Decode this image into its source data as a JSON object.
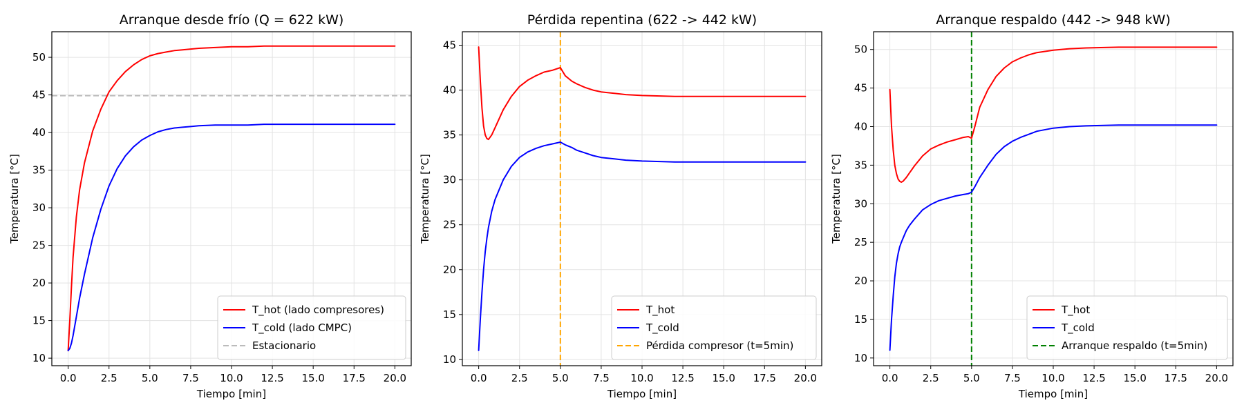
{
  "chart_data": [
    {
      "type": "line",
      "title": "Arranque desde frío (Q = 622 kW)",
      "xlabel": "Tiempo [min]",
      "ylabel": "Temperatura [°C]",
      "xlim": [
        -1,
        21
      ],
      "ylim": [
        9,
        53.4
      ],
      "xticks": [
        "0.0",
        "2.5",
        "5.0",
        "7.5",
        "10.0",
        "12.5",
        "15.0",
        "17.5",
        "20.0"
      ],
      "yticks": [
        "10",
        "15",
        "20",
        "25",
        "30",
        "35",
        "40",
        "45",
        "50"
      ],
      "grid": true,
      "legend_position": "lower-right",
      "x": [
        0,
        0.1,
        0.2,
        0.3,
        0.5,
        0.7,
        1.0,
        1.5,
        2.0,
        2.5,
        3.0,
        3.5,
        4.0,
        4.5,
        5.0,
        5.5,
        6.0,
        6.5,
        7.0,
        7.5,
        8.0,
        9.0,
        10.0,
        11.0,
        12.0,
        13.0,
        14.0,
        15.0,
        16.0,
        17.0,
        18.0,
        19.0,
        20.0
      ],
      "series": [
        {
          "name": "T_hot (lado compresores)",
          "color": "#ff0000",
          "style": "solid",
          "values": [
            11.0,
            15.0,
            19.5,
            23.4,
            28.8,
            32.4,
            36.0,
            40.2,
            43.1,
            45.4,
            46.9,
            48.1,
            49.0,
            49.7,
            50.2,
            50.5,
            50.7,
            50.9,
            51.0,
            51.1,
            51.2,
            51.3,
            51.4,
            51.4,
            51.5,
            51.5,
            51.5,
            51.5,
            51.5,
            51.5,
            51.5,
            51.5,
            51.5
          ]
        },
        {
          "name": "T_cold (lado CMPC)",
          "color": "#0000ff",
          "style": "solid",
          "values": [
            11.0,
            11.3,
            12.0,
            13.0,
            15.5,
            18.0,
            21.2,
            26.0,
            29.8,
            32.9,
            35.2,
            36.9,
            38.1,
            39.0,
            39.6,
            40.1,
            40.4,
            40.6,
            40.7,
            40.8,
            40.9,
            41.0,
            41.0,
            41.0,
            41.1,
            41.1,
            41.1,
            41.1,
            41.1,
            41.1,
            41.1,
            41.1,
            41.1
          ]
        }
      ],
      "reference_lines": [
        {
          "name": "Estacionario",
          "axis": "y",
          "value": 44.9,
          "color": "#bbbbbb",
          "style": "dashed"
        }
      ]
    },
    {
      "type": "line",
      "title": "Pérdida repentina (622 -> 442 kW)",
      "xlabel": "Tiempo [min]",
      "ylabel": "Temperatura [°C]",
      "xlim": [
        -1,
        21
      ],
      "ylim": [
        9.3,
        46.5
      ],
      "xticks": [
        "0.0",
        "2.5",
        "5.0",
        "7.5",
        "10.0",
        "12.5",
        "15.0",
        "17.5",
        "20.0"
      ],
      "yticks": [
        "10",
        "15",
        "20",
        "25",
        "30",
        "35",
        "40",
        "45"
      ],
      "grid": true,
      "legend_position": "lower-right",
      "x": [
        0,
        0.1,
        0.2,
        0.3,
        0.4,
        0.5,
        0.6,
        0.8,
        1.0,
        1.5,
        2.0,
        2.5,
        3.0,
        3.5,
        4.0,
        4.5,
        5.0,
        5.3,
        5.7,
        6.0,
        6.5,
        7.0,
        7.5,
        8.0,
        9.0,
        10.0,
        12.0,
        14.0,
        16.0,
        18.0,
        20.0
      ],
      "series": [
        {
          "name": "T_hot",
          "color": "#ff0000",
          "style": "solid",
          "values": [
            44.8,
            41.0,
            38.0,
            36.0,
            35.0,
            34.6,
            34.5,
            35.0,
            35.8,
            37.8,
            39.3,
            40.4,
            41.1,
            41.6,
            42.0,
            42.2,
            42.5,
            41.6,
            41.0,
            40.7,
            40.3,
            40.0,
            39.8,
            39.7,
            39.5,
            39.4,
            39.3,
            39.3,
            39.3,
            39.3,
            39.3
          ]
        },
        {
          "name": "T_cold",
          "color": "#0000ff",
          "style": "solid",
          "values": [
            11.0,
            14.5,
            17.5,
            20.0,
            22.0,
            23.5,
            24.7,
            26.5,
            27.8,
            30.0,
            31.5,
            32.5,
            33.1,
            33.5,
            33.8,
            34.0,
            34.2,
            33.9,
            33.6,
            33.3,
            33.0,
            32.7,
            32.5,
            32.4,
            32.2,
            32.1,
            32.0,
            32.0,
            32.0,
            32.0,
            32.0
          ]
        }
      ],
      "reference_lines": [
        {
          "name": "Pérdida compresor (t=5min)",
          "axis": "x",
          "value": 5.0,
          "color": "#ffa500",
          "style": "dashed"
        }
      ]
    },
    {
      "type": "line",
      "title": "Arranque respaldo (442 -> 948 kW)",
      "xlabel": "Tiempo [min]",
      "ylabel": "Temperatura [°C]",
      "xlim": [
        -1,
        21
      ],
      "ylim": [
        9.0,
        52.3
      ],
      "xticks": [
        "0.0",
        "2.5",
        "5.0",
        "7.5",
        "10.0",
        "12.5",
        "15.0",
        "17.5",
        "20.0"
      ],
      "yticks": [
        "10",
        "15",
        "20",
        "25",
        "30",
        "35",
        "40",
        "45",
        "50"
      ],
      "grid": true,
      "legend_position": "lower-right",
      "x": [
        0,
        0.1,
        0.2,
        0.3,
        0.4,
        0.5,
        0.6,
        0.7,
        0.8,
        1.0,
        1.2,
        1.5,
        2.0,
        2.5,
        3.0,
        3.5,
        4.0,
        4.5,
        4.8,
        5.0,
        5.2,
        5.5,
        6.0,
        6.5,
        7.0,
        7.5,
        8.0,
        8.5,
        9.0,
        10.0,
        11.0,
        12.0,
        14.0,
        16.0,
        18.0,
        20.0
      ],
      "series": [
        {
          "name": "T_hot",
          "color": "#ff0000",
          "style": "solid",
          "values": [
            44.8,
            40.0,
            37.0,
            35.0,
            33.9,
            33.2,
            32.9,
            32.8,
            32.9,
            33.4,
            34.0,
            34.9,
            36.2,
            37.1,
            37.6,
            38.0,
            38.3,
            38.6,
            38.7,
            38.5,
            40.0,
            42.5,
            44.8,
            46.5,
            47.6,
            48.4,
            48.9,
            49.3,
            49.6,
            49.9,
            50.1,
            50.2,
            50.3,
            50.3,
            50.3,
            50.3
          ]
        },
        {
          "name": "T_cold",
          "color": "#0000ff",
          "style": "solid",
          "values": [
            11.0,
            15.0,
            18.0,
            20.5,
            22.3,
            23.5,
            24.4,
            25.0,
            25.5,
            26.5,
            27.2,
            28.0,
            29.2,
            29.9,
            30.4,
            30.7,
            31.0,
            31.2,
            31.3,
            31.5,
            32.2,
            33.4,
            35.0,
            36.4,
            37.4,
            38.1,
            38.6,
            39.0,
            39.4,
            39.8,
            40.0,
            40.1,
            40.2,
            40.2,
            40.2,
            40.2
          ]
        }
      ],
      "reference_lines": [
        {
          "name": "Arranque respaldo (t=5min)",
          "axis": "x",
          "value": 5.0,
          "color": "#008000",
          "style": "dashed"
        }
      ]
    }
  ]
}
